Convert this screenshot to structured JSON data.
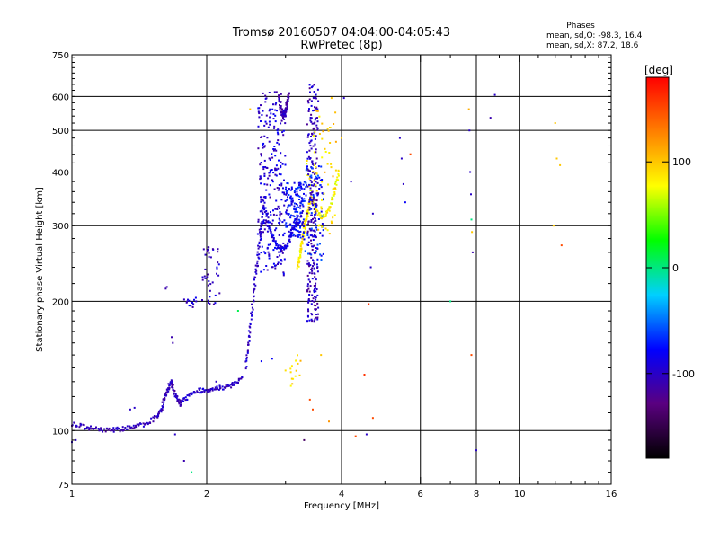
{
  "chart_data": {
    "type": "scatter",
    "title": "Tromsø 20160507 04:04:00-04:05:43",
    "subtitle": "RwPretec (8p)",
    "xlabel": "Frequency [MHz]",
    "ylabel": "Stationary phase Virtual Height [km]",
    "x_scale": "log",
    "y_scale": "log",
    "xlim": [
      1,
      16
    ],
    "ylim": [
      75,
      750
    ],
    "x_ticks": [
      1,
      2,
      4,
      6,
      8,
      10,
      16
    ],
    "y_ticks": [
      75,
      100,
      200,
      300,
      400,
      500,
      600,
      750
    ],
    "grid": true,
    "phases_box": {
      "title": "Phases",
      "line_o": "mean, sd,O: -98.3, 16.4",
      "line_x": "mean, sd,X:  87.2, 18.6"
    },
    "colorbar": {
      "label": "[deg]",
      "ticks": [
        100,
        0,
        -100
      ],
      "range": [
        -180,
        180
      ],
      "colors": [
        "#000000",
        "#5a0080",
        "#0000ff",
        "#00d0ff",
        "#00ff00",
        "#ffff00",
        "#ff8000",
        "#ff0000"
      ]
    },
    "traces": [
      {
        "name": "o-low",
        "x0": 1.0,
        "x1": 1.55,
        "y": [
          104,
          102,
          101,
          100.5,
          100.5,
          101,
          102,
          104,
          108
        ],
        "phase": -105
      },
      {
        "name": "o-low-bump",
        "x0": 1.55,
        "x1": 1.75,
        "y": [
          108,
          113,
          123,
          130,
          120,
          115
        ],
        "phase": -105
      },
      {
        "name": "o-mid",
        "x0": 1.75,
        "x1": 2.4,
        "y": [
          116,
          120,
          124,
          124,
          126,
          126,
          128,
          132
        ],
        "phase": -100
      },
      {
        "name": "o-rise",
        "x0": 2.45,
        "x1": 2.7,
        "y": [
          140,
          170,
          210,
          250,
          300,
          350
        ],
        "phase": -100
      },
      {
        "name": "o-curve",
        "x0": 2.7,
        "x1": 3.2,
        "y": [
          330,
          290,
          270,
          265,
          270,
          290,
          310
        ],
        "phase": -90
      },
      {
        "name": "o-upper",
        "x0": 2.9,
        "x1": 3.05,
        "y": [
          600,
          560,
          540,
          545,
          570,
          610
        ],
        "phase": -110
      },
      {
        "name": "x-cusp",
        "x0": 3.35,
        "x1": 3.95,
        "y": [
          420,
          350,
          325,
          315,
          318,
          330,
          360,
          400
        ],
        "phase": 80
      },
      {
        "name": "x-lower",
        "x0": 3.2,
        "x1": 3.4,
        "y": [
          240,
          260,
          280,
          300,
          320,
          340
        ],
        "phase": 85
      }
    ],
    "clouds": [
      {
        "x": [
          2.6,
          3.0
        ],
        "y": [
          230,
          620
        ],
        "phase": -95,
        "n": 260
      },
      {
        "x": [
          3.0,
          3.3
        ],
        "y": [
          280,
          380
        ],
        "phase": -80,
        "n": 160
      },
      {
        "x": [
          3.35,
          3.55
        ],
        "y": [
          180,
          640
        ],
        "phase": -105,
        "n": 260
      },
      {
        "x": [
          3.3,
          3.65
        ],
        "y": [
          250,
          420
        ],
        "phase": -70,
        "n": 80
      },
      {
        "x": [
          3.45,
          3.9
        ],
        "y": [
          280,
          560
        ],
        "phase": 95,
        "n": 60
      },
      {
        "x": [
          3.05,
          3.25
        ],
        "y": [
          125,
          150
        ],
        "phase": 90,
        "n": 14
      },
      {
        "x": [
          1.95,
          2.15
        ],
        "y": [
          195,
          270
        ],
        "phase": -100,
        "n": 40
      },
      {
        "x": [
          1.78,
          1.9
        ],
        "y": [
          190,
          205
        ],
        "phase": -100,
        "n": 14
      }
    ],
    "scattered_points": [
      {
        "x": 1.0,
        "y": 94,
        "phase": -100
      },
      {
        "x": 1.02,
        "y": 95,
        "phase": -100
      },
      {
        "x": 1.38,
        "y": 113,
        "phase": -100
      },
      {
        "x": 1.35,
        "y": 112,
        "phase": -100
      },
      {
        "x": 1.62,
        "y": 214,
        "phase": -110
      },
      {
        "x": 1.63,
        "y": 216,
        "phase": -110
      },
      {
        "x": 1.67,
        "y": 165,
        "phase": -110
      },
      {
        "x": 1.68,
        "y": 160,
        "phase": -110
      },
      {
        "x": 1.7,
        "y": 98,
        "phase": -100
      },
      {
        "x": 1.78,
        "y": 85,
        "phase": -110
      },
      {
        "x": 1.85,
        "y": 80,
        "phase": 0
      },
      {
        "x": 2.1,
        "y": 130,
        "phase": -100
      },
      {
        "x": 2.35,
        "y": 190,
        "phase": 10
      },
      {
        "x": 2.5,
        "y": 560,
        "phase": 100
      },
      {
        "x": 2.65,
        "y": 145,
        "phase": -80
      },
      {
        "x": 2.8,
        "y": 147,
        "phase": -80
      },
      {
        "x": 3.0,
        "y": 138,
        "phase": 90
      },
      {
        "x": 3.1,
        "y": 132,
        "phase": 95
      },
      {
        "x": 3.3,
        "y": 95,
        "phase": -140
      },
      {
        "x": 3.4,
        "y": 118,
        "phase": 150
      },
      {
        "x": 3.45,
        "y": 112,
        "phase": 150
      },
      {
        "x": 3.6,
        "y": 150,
        "phase": 100
      },
      {
        "x": 3.75,
        "y": 105,
        "phase": 120
      },
      {
        "x": 3.8,
        "y": 595,
        "phase": 100
      },
      {
        "x": 4.0,
        "y": 480,
        "phase": 100
      },
      {
        "x": 4.05,
        "y": 595,
        "phase": -100
      },
      {
        "x": 4.2,
        "y": 380,
        "phase": -100
      },
      {
        "x": 4.3,
        "y": 97,
        "phase": 150
      },
      {
        "x": 4.5,
        "y": 135,
        "phase": 160
      },
      {
        "x": 4.55,
        "y": 98,
        "phase": -100
      },
      {
        "x": 4.6,
        "y": 197,
        "phase": 160
      },
      {
        "x": 4.65,
        "y": 240,
        "phase": -100
      },
      {
        "x": 4.7,
        "y": 320,
        "phase": -100
      },
      {
        "x": 4.7,
        "y": 107,
        "phase": 150
      },
      {
        "x": 5.4,
        "y": 480,
        "phase": -100
      },
      {
        "x": 5.45,
        "y": 430,
        "phase": -100
      },
      {
        "x": 5.5,
        "y": 375,
        "phase": -100
      },
      {
        "x": 5.55,
        "y": 340,
        "phase": -80
      },
      {
        "x": 5.7,
        "y": 440,
        "phase": 150
      },
      {
        "x": 7.0,
        "y": 200,
        "phase": 0
      },
      {
        "x": 7.7,
        "y": 560,
        "phase": 110
      },
      {
        "x": 7.72,
        "y": 500,
        "phase": -100
      },
      {
        "x": 7.75,
        "y": 400,
        "phase": -100
      },
      {
        "x": 7.78,
        "y": 355,
        "phase": -100
      },
      {
        "x": 7.8,
        "y": 310,
        "phase": 0
      },
      {
        "x": 7.82,
        "y": 290,
        "phase": 100
      },
      {
        "x": 7.85,
        "y": 260,
        "phase": -110
      },
      {
        "x": 7.8,
        "y": 150,
        "phase": 150
      },
      {
        "x": 8.0,
        "y": 90,
        "phase": -100
      },
      {
        "x": 8.6,
        "y": 535,
        "phase": -110
      },
      {
        "x": 8.8,
        "y": 605,
        "phase": -100
      },
      {
        "x": 12.0,
        "y": 520,
        "phase": 100
      },
      {
        "x": 12.1,
        "y": 430,
        "phase": 100
      },
      {
        "x": 12.3,
        "y": 415,
        "phase": 100
      },
      {
        "x": 11.9,
        "y": 300,
        "phase": 100
      },
      {
        "x": 12.4,
        "y": 270,
        "phase": 150
      }
    ]
  }
}
